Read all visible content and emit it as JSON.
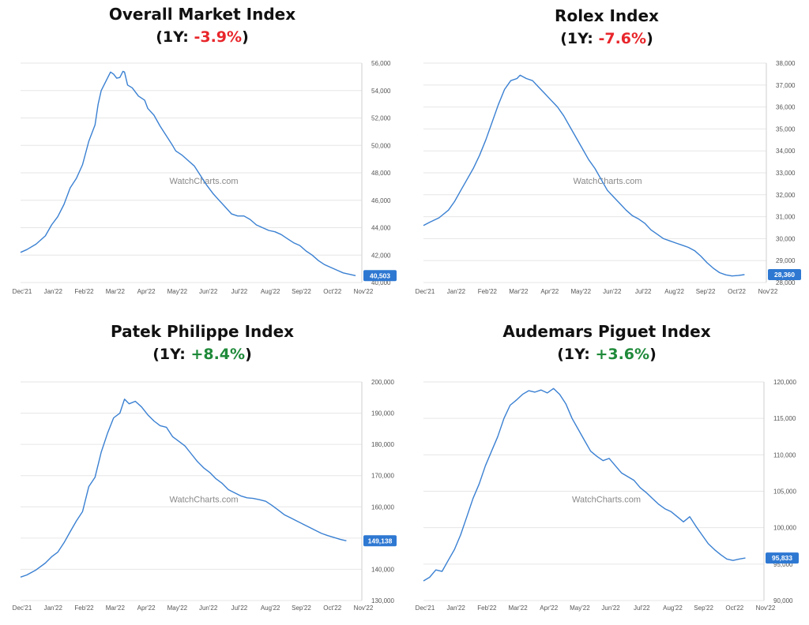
{
  "watermark": "WatchCharts.com",
  "line_color": "#3a80d2",
  "badge_color": "#2e78d2",
  "negative_color": "#e8262b",
  "positive_color": "#1f8a3a",
  "chart_data": [
    {
      "type": "line",
      "title": "Overall Market Index",
      "subtitle_prefix": "(1Y: ",
      "change": "-3.9%",
      "subtitle_suffix": ")",
      "x_labels": [
        "Dec'21",
        "Jan'22",
        "Feb'22",
        "Mar'22",
        "Apr'22",
        "May'22",
        "Jun'22",
        "Jul'22",
        "Aug'22",
        "Sep'22",
        "Oct'22",
        "Nov'22"
      ],
      "y_ticks": [
        40000,
        42000,
        44000,
        46000,
        48000,
        50000,
        52000,
        54000,
        56000
      ],
      "y_tick_labels": [
        "40,000",
        "42,000",
        "44,000",
        "46,000",
        "48,000",
        "50,000",
        "52,000",
        "54,000",
        "56,000"
      ],
      "ylim": [
        40000,
        56000
      ],
      "last_value_label": "40,503",
      "points": [
        [
          0,
          42200
        ],
        [
          0.2,
          42400
        ],
        [
          0.5,
          42800
        ],
        [
          0.8,
          43400
        ],
        [
          1.0,
          44200
        ],
        [
          1.2,
          44800
        ],
        [
          1.4,
          45700
        ],
        [
          1.6,
          46900
        ],
        [
          1.8,
          47600
        ],
        [
          2.0,
          48600
        ],
        [
          2.2,
          50300
        ],
        [
          2.4,
          51500
        ],
        [
          2.5,
          53000
        ],
        [
          2.6,
          54000
        ],
        [
          2.8,
          54900
        ],
        [
          2.9,
          55350
        ],
        [
          3.0,
          55200
        ],
        [
          3.1,
          54900
        ],
        [
          3.2,
          54950
        ],
        [
          3.3,
          55400
        ],
        [
          3.35,
          55350
        ],
        [
          3.45,
          54400
        ],
        [
          3.6,
          54200
        ],
        [
          3.8,
          53600
        ],
        [
          4.0,
          53300
        ],
        [
          4.1,
          52700
        ],
        [
          4.3,
          52200
        ],
        [
          4.5,
          51400
        ],
        [
          4.7,
          50700
        ],
        [
          4.9,
          50000
        ],
        [
          5.0,
          49600
        ],
        [
          5.2,
          49300
        ],
        [
          5.4,
          48900
        ],
        [
          5.6,
          48500
        ],
        [
          5.8,
          47800
        ],
        [
          6.0,
          47100
        ],
        [
          6.2,
          46500
        ],
        [
          6.4,
          46000
        ],
        [
          6.6,
          45500
        ],
        [
          6.8,
          45000
        ],
        [
          7.0,
          44850
        ],
        [
          7.2,
          44850
        ],
        [
          7.4,
          44600
        ],
        [
          7.6,
          44200
        ],
        [
          7.8,
          44000
        ],
        [
          8.0,
          43800
        ],
        [
          8.2,
          43700
        ],
        [
          8.4,
          43500
        ],
        [
          8.6,
          43200
        ],
        [
          8.8,
          42900
        ],
        [
          9.0,
          42700
        ],
        [
          9.2,
          42300
        ],
        [
          9.4,
          42000
        ],
        [
          9.6,
          41600
        ],
        [
          9.8,
          41300
        ],
        [
          10.0,
          41100
        ],
        [
          10.2,
          40900
        ],
        [
          10.4,
          40700
        ],
        [
          10.6,
          40600
        ],
        [
          10.8,
          40503
        ]
      ]
    },
    {
      "type": "line",
      "title": "Rolex Index",
      "subtitle_prefix": "(1Y: ",
      "change": "-7.6%",
      "subtitle_suffix": ")",
      "x_labels": [
        "Dec'21",
        "Jan'22",
        "Feb'22",
        "Mar'22",
        "Apr'22",
        "May'22",
        "Jun'22",
        "Jul'22",
        "Aug'22",
        "Sep'22",
        "Oct'22",
        "Nov'22"
      ],
      "y_ticks": [
        28000,
        29000,
        30000,
        31000,
        32000,
        33000,
        34000,
        35000,
        36000,
        37000,
        38000
      ],
      "y_tick_labels": [
        "28,000",
        "29,000",
        "30,000",
        "31,000",
        "32,000",
        "33,000",
        "34,000",
        "35,000",
        "36,000",
        "37,000",
        "38,000"
      ],
      "ylim": [
        28000,
        38000
      ],
      "last_value_label": "28,360",
      "points": [
        [
          0,
          30600
        ],
        [
          0.2,
          30750
        ],
        [
          0.5,
          30950
        ],
        [
          0.8,
          31300
        ],
        [
          1.0,
          31700
        ],
        [
          1.2,
          32200
        ],
        [
          1.4,
          32700
        ],
        [
          1.6,
          33200
        ],
        [
          1.8,
          33800
        ],
        [
          2.0,
          34500
        ],
        [
          2.2,
          35300
        ],
        [
          2.4,
          36100
        ],
        [
          2.6,
          36800
        ],
        [
          2.8,
          37200
        ],
        [
          3.0,
          37300
        ],
        [
          3.1,
          37450
        ],
        [
          3.3,
          37300
        ],
        [
          3.5,
          37200
        ],
        [
          3.7,
          36900
        ],
        [
          3.9,
          36600
        ],
        [
          4.1,
          36300
        ],
        [
          4.3,
          36000
        ],
        [
          4.5,
          35600
        ],
        [
          4.7,
          35100
        ],
        [
          4.9,
          34600
        ],
        [
          5.1,
          34100
        ],
        [
          5.3,
          33600
        ],
        [
          5.5,
          33200
        ],
        [
          5.7,
          32700
        ],
        [
          5.9,
          32200
        ],
        [
          6.1,
          31900
        ],
        [
          6.3,
          31600
        ],
        [
          6.5,
          31300
        ],
        [
          6.7,
          31050
        ],
        [
          6.9,
          30900
        ],
        [
          7.1,
          30700
        ],
        [
          7.3,
          30400
        ],
        [
          7.5,
          30200
        ],
        [
          7.7,
          30000
        ],
        [
          7.9,
          29900
        ],
        [
          8.1,
          29800
        ],
        [
          8.3,
          29700
        ],
        [
          8.5,
          29600
        ],
        [
          8.7,
          29450
        ],
        [
          8.9,
          29200
        ],
        [
          9.1,
          28900
        ],
        [
          9.3,
          28650
        ],
        [
          9.5,
          28450
        ],
        [
          9.7,
          28350
        ],
        [
          9.9,
          28300
        ],
        [
          10.1,
          28320
        ],
        [
          10.3,
          28360
        ]
      ]
    },
    {
      "type": "line",
      "title": "Patek Philippe Index",
      "subtitle_prefix": "(1Y: ",
      "change": "+8.4%",
      "subtitle_suffix": ")",
      "x_labels": [
        "Dec'21",
        "Jan'22",
        "Feb'22",
        "Mar'22",
        "Apr'22",
        "May'22",
        "Jun'22",
        "Jul'22",
        "Aug'22",
        "Sep'22",
        "Oct'22",
        "Nov'22"
      ],
      "y_ticks": [
        130000,
        140000,
        150000,
        160000,
        170000,
        180000,
        190000,
        200000
      ],
      "y_tick_labels": [
        "130,000",
        "140,000",
        "150,000",
        "160,000",
        "170,000",
        "180,000",
        "190,000",
        "200,000"
      ],
      "ylim": [
        130000,
        200000
      ],
      "last_value_label": "149,138",
      "points": [
        [
          0,
          137500
        ],
        [
          0.2,
          138200
        ],
        [
          0.5,
          139800
        ],
        [
          0.8,
          142000
        ],
        [
          1.0,
          144000
        ],
        [
          1.2,
          145500
        ],
        [
          1.4,
          148500
        ],
        [
          1.6,
          152000
        ],
        [
          1.8,
          155500
        ],
        [
          2.0,
          158500
        ],
        [
          2.2,
          166500
        ],
        [
          2.4,
          169500
        ],
        [
          2.6,
          177500
        ],
        [
          2.8,
          183500
        ],
        [
          3.0,
          188500
        ],
        [
          3.2,
          190000
        ],
        [
          3.35,
          194500
        ],
        [
          3.5,
          193000
        ],
        [
          3.7,
          193800
        ],
        [
          3.9,
          192000
        ],
        [
          4.1,
          189500
        ],
        [
          4.3,
          187500
        ],
        [
          4.5,
          186000
        ],
        [
          4.7,
          185500
        ],
        [
          4.9,
          182500
        ],
        [
          5.1,
          181000
        ],
        [
          5.3,
          179500
        ],
        [
          5.5,
          177000
        ],
        [
          5.7,
          174500
        ],
        [
          5.9,
          172500
        ],
        [
          6.1,
          171000
        ],
        [
          6.3,
          169000
        ],
        [
          6.5,
          167500
        ],
        [
          6.7,
          165500
        ],
        [
          6.9,
          164500
        ],
        [
          7.1,
          163500
        ],
        [
          7.3,
          162900
        ],
        [
          7.5,
          162700
        ],
        [
          7.7,
          162300
        ],
        [
          7.9,
          161800
        ],
        [
          8.1,
          160500
        ],
        [
          8.3,
          159000
        ],
        [
          8.5,
          157500
        ],
        [
          8.7,
          156500
        ],
        [
          8.9,
          155500
        ],
        [
          9.1,
          154500
        ],
        [
          9.3,
          153500
        ],
        [
          9.5,
          152500
        ],
        [
          9.7,
          151500
        ],
        [
          9.9,
          150800
        ],
        [
          10.1,
          150200
        ],
        [
          10.3,
          149600
        ],
        [
          10.5,
          149138
        ]
      ]
    },
    {
      "type": "line",
      "title": "Audemars Piguet Index",
      "subtitle_prefix": "(1Y: ",
      "change": "+3.6%",
      "subtitle_suffix": ")",
      "x_labels": [
        "Dec'21",
        "Jan'22",
        "Feb'22",
        "Mar'22",
        "Apr'22",
        "May'22",
        "Jun'22",
        "Jul'22",
        "Aug'22",
        "Sep'22",
        "Oct'22",
        "Nov'22"
      ],
      "y_ticks": [
        90000,
        95000,
        100000,
        105000,
        110000,
        115000,
        120000
      ],
      "y_tick_labels": [
        "90,000",
        "95,000",
        "100,000",
        "105,000",
        "110,000",
        "115,000",
        "120,000"
      ],
      "ylim": [
        90000,
        120000
      ],
      "last_value_label": "95,833",
      "points": [
        [
          0,
          92700
        ],
        [
          0.2,
          93200
        ],
        [
          0.4,
          94200
        ],
        [
          0.6,
          94000
        ],
        [
          0.8,
          95500
        ],
        [
          1.0,
          97000
        ],
        [
          1.2,
          99000
        ],
        [
          1.4,
          101500
        ],
        [
          1.6,
          104000
        ],
        [
          1.8,
          106000
        ],
        [
          2.0,
          108500
        ],
        [
          2.2,
          110500
        ],
        [
          2.4,
          112500
        ],
        [
          2.6,
          115000
        ],
        [
          2.8,
          116800
        ],
        [
          3.0,
          117500
        ],
        [
          3.2,
          118300
        ],
        [
          3.4,
          118800
        ],
        [
          3.6,
          118600
        ],
        [
          3.8,
          118900
        ],
        [
          4.0,
          118500
        ],
        [
          4.2,
          119100
        ],
        [
          4.4,
          118300
        ],
        [
          4.6,
          117000
        ],
        [
          4.8,
          115000
        ],
        [
          5.0,
          113500
        ],
        [
          5.2,
          112000
        ],
        [
          5.4,
          110500
        ],
        [
          5.6,
          109800
        ],
        [
          5.8,
          109200
        ],
        [
          6.0,
          109500
        ],
        [
          6.2,
          108500
        ],
        [
          6.4,
          107500
        ],
        [
          6.6,
          107000
        ],
        [
          6.8,
          106500
        ],
        [
          7.0,
          105500
        ],
        [
          7.2,
          104800
        ],
        [
          7.4,
          104000
        ],
        [
          7.6,
          103200
        ],
        [
          7.8,
          102600
        ],
        [
          8.0,
          102200
        ],
        [
          8.2,
          101500
        ],
        [
          8.4,
          100800
        ],
        [
          8.6,
          101500
        ],
        [
          8.8,
          100200
        ],
        [
          9.0,
          99000
        ],
        [
          9.2,
          97800
        ],
        [
          9.4,
          97000
        ],
        [
          9.6,
          96300
        ],
        [
          9.8,
          95700
        ],
        [
          10.0,
          95500
        ],
        [
          10.2,
          95700
        ],
        [
          10.4,
          95833
        ]
      ]
    }
  ]
}
